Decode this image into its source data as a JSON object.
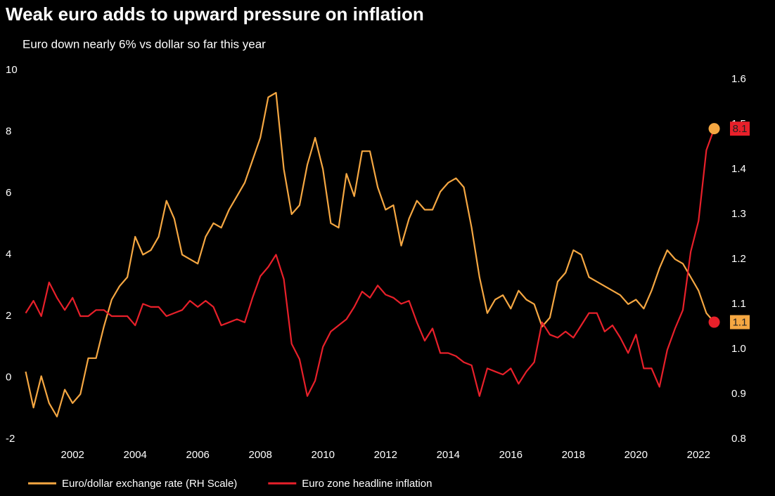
{
  "chart_data": {
    "type": "line",
    "title": "Weak euro adds to upward pressure on inflation",
    "subtitle": "Euro down nearly 6% vs dollar so far this year",
    "x": [
      2000.5,
      2000.75,
      2001,
      2001.25,
      2001.5,
      2001.75,
      2002,
      2002.25,
      2002.5,
      2002.75,
      2003,
      2003.25,
      2003.5,
      2003.75,
      2004,
      2004.25,
      2004.5,
      2004.75,
      2005,
      2005.25,
      2005.5,
      2005.75,
      2006,
      2006.25,
      2006.5,
      2006.75,
      2007,
      2007.25,
      2007.5,
      2007.75,
      2008,
      2008.25,
      2008.5,
      2008.75,
      2009,
      2009.25,
      2009.5,
      2009.75,
      2010,
      2010.25,
      2010.5,
      2010.75,
      2011,
      2011.25,
      2011.5,
      2011.75,
      2012,
      2012.25,
      2012.5,
      2012.75,
      2013,
      2013.25,
      2013.5,
      2013.75,
      2014,
      2014.25,
      2014.5,
      2014.75,
      2015,
      2015.25,
      2015.5,
      2015.75,
      2016,
      2016.25,
      2016.5,
      2016.75,
      2017,
      2017.25,
      2017.5,
      2017.75,
      2018,
      2018.25,
      2018.5,
      2018.75,
      2019,
      2019.25,
      2019.5,
      2019.75,
      2020,
      2020.25,
      2020.5,
      2020.75,
      2021,
      2021.25,
      2021.5,
      2021.75,
      2022,
      2022.25,
      2022.5
    ],
    "series": [
      {
        "name": "Euro/dollar exchange rate (RH Scale)",
        "color": "#f5a742",
        "axis": "y2",
        "marker_color": "#e8202a",
        "end_label": "1.1",
        "values": [
          0.95,
          0.87,
          0.94,
          0.88,
          0.85,
          0.91,
          0.88,
          0.9,
          0.98,
          0.98,
          1.05,
          1.11,
          1.14,
          1.16,
          1.25,
          1.21,
          1.22,
          1.25,
          1.33,
          1.29,
          1.21,
          1.2,
          1.19,
          1.25,
          1.28,
          1.27,
          1.31,
          1.34,
          1.37,
          1.42,
          1.47,
          1.56,
          1.57,
          1.4,
          1.3,
          1.32,
          1.41,
          1.47,
          1.4,
          1.28,
          1.27,
          1.39,
          1.34,
          1.44,
          1.44,
          1.36,
          1.31,
          1.32,
          1.23,
          1.29,
          1.33,
          1.31,
          1.31,
          1.35,
          1.37,
          1.38,
          1.36,
          1.27,
          1.16,
          1.08,
          1.11,
          1.12,
          1.09,
          1.13,
          1.11,
          1.1,
          1.05,
          1.07,
          1.15,
          1.17,
          1.22,
          1.21,
          1.16,
          1.15,
          1.14,
          1.13,
          1.12,
          1.1,
          1.11,
          1.09,
          1.13,
          1.18,
          1.22,
          1.2,
          1.19,
          1.16,
          1.13,
          1.08,
          1.06
        ]
      },
      {
        "name": "Euro zone headline inflation",
        "color": "#e8202a",
        "marker_color": "#f5a742",
        "end_label": "8.1",
        "values": [
          2.1,
          2.5,
          2.0,
          3.1,
          2.6,
          2.2,
          2.6,
          2.0,
          2.0,
          2.2,
          2.2,
          2.0,
          2.0,
          2.0,
          1.7,
          2.4,
          2.3,
          2.3,
          2.0,
          2.1,
          2.2,
          2.5,
          2.3,
          2.5,
          2.3,
          1.7,
          1.8,
          1.9,
          1.8,
          2.6,
          3.3,
          3.6,
          4.0,
          3.2,
          1.1,
          0.6,
          -0.6,
          -0.1,
          1.0,
          1.5,
          1.7,
          1.9,
          2.3,
          2.8,
          2.6,
          3.0,
          2.7,
          2.6,
          2.4,
          2.5,
          1.8,
          1.2,
          1.6,
          0.8,
          0.8,
          0.7,
          0.5,
          0.4,
          -0.6,
          0.3,
          0.2,
          0.1,
          0.3,
          -0.2,
          0.2,
          0.5,
          1.8,
          1.4,
          1.3,
          1.5,
          1.3,
          1.7,
          2.1,
          2.1,
          1.5,
          1.7,
          1.3,
          0.8,
          1.4,
          0.3,
          0.3,
          -0.3,
          0.9,
          1.6,
          2.2,
          4.1,
          5.1,
          7.4,
          8.1
        ]
      }
    ],
    "xlim": [
      2000.4,
      2022.6
    ],
    "xticks": [
      2002,
      2004,
      2006,
      2008,
      2010,
      2012,
      2014,
      2016,
      2018,
      2020,
      2022
    ],
    "ylim": [
      -2,
      10
    ],
    "yticks": [
      -2,
      0,
      2,
      4,
      6,
      8,
      10
    ],
    "y2lim": [
      0.8,
      1.62
    ],
    "y2ticks": [
      0.8,
      0.9,
      {
        "value": 1,
        "label": "1.0"
      },
      1.1,
      1.2,
      1.3,
      1.4,
      1.5,
      1.6
    ]
  }
}
